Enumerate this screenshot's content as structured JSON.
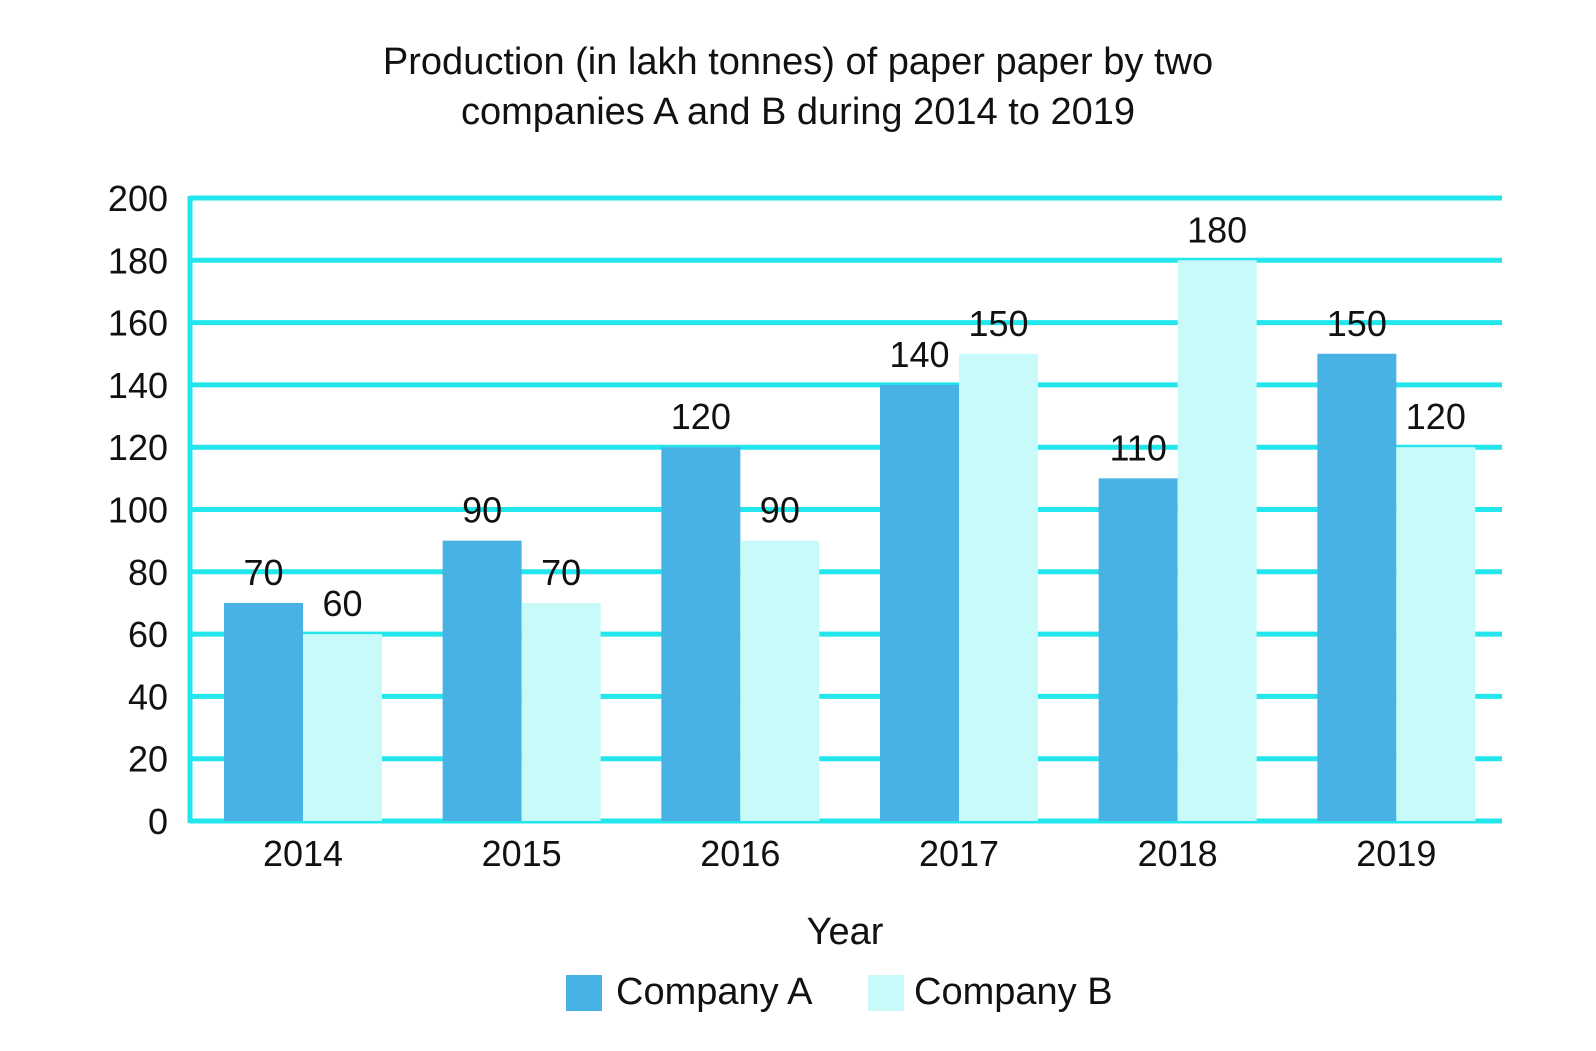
{
  "chart_data": {
    "type": "bar",
    "title": "Production (in lakh tonnes) of paper paper by two",
    "subtitle": "companies A and B during 2014 to 2019",
    "xlabel": "Year",
    "ylabel": "",
    "categories": [
      "2014",
      "2015",
      "2016",
      "2017",
      "2018",
      "2019"
    ],
    "series": [
      {
        "name": "Company A",
        "color": "#48b2e4",
        "values": [
          70,
          90,
          120,
          140,
          110,
          150
        ]
      },
      {
        "name": "Company B",
        "color": "#c7faf8",
        "values": [
          60,
          70,
          90,
          150,
          180,
          120
        ]
      }
    ],
    "ylim": [
      0,
      200
    ],
    "yticks": [
      "0",
      "20",
      "40",
      "60",
      "80",
      "100",
      "120",
      "140",
      "160",
      "180",
      "200"
    ],
    "grid": true,
    "grid_color": "#22e6ec",
    "legend_position": "bottom-center"
  }
}
